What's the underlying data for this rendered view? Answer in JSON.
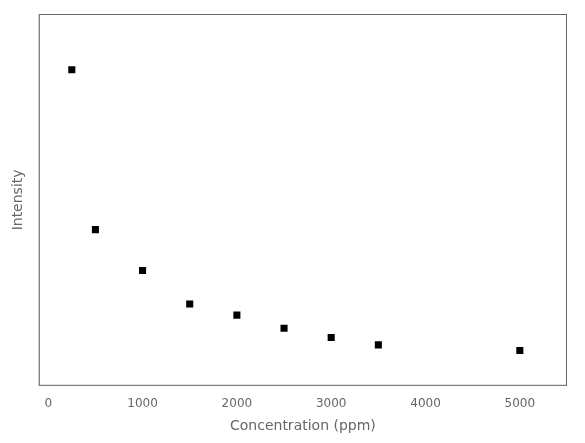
{
  "chart_data": {
    "type": "scatter",
    "xlabel": "Concentration (ppm)",
    "ylabel": "Intensity",
    "x": [
      250,
      500,
      1000,
      1500,
      2000,
      2500,
      3000,
      3500,
      5000
    ],
    "values": [
      8500,
      4200,
      3100,
      2200,
      1900,
      1550,
      1300,
      1100,
      950
    ],
    "color": "black",
    "marker": "square",
    "xlim": [
      -100,
      5500
    ],
    "ylim": [
      0,
      10000
    ],
    "xticks": [
      0,
      1000,
      2000,
      3000,
      4000,
      5000
    ],
    "grid": false,
    "tick_labels": "x"
  }
}
